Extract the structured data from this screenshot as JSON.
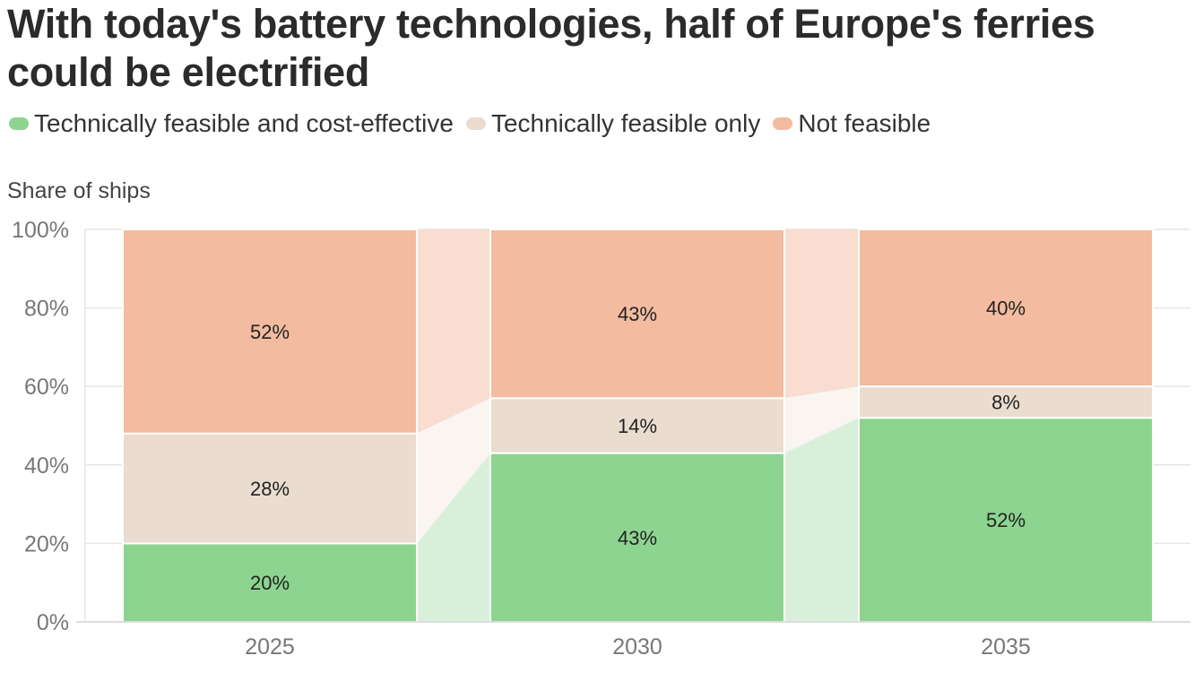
{
  "title": "With today's battery technologies, half of Europe's ferries could be electrified",
  "legend": [
    {
      "label": "Technically feasible and cost-effective",
      "color": "#8dd490"
    },
    {
      "label": "Technically feasible only",
      "color": "#eadccf"
    },
    {
      "label": "Not feasible",
      "color": "#f3bba0"
    }
  ],
  "chart_data": {
    "type": "bar",
    "stacked": true,
    "title": "With today's battery technologies, half of Europe's ferries could be electrified",
    "ylabel": "Share of ships",
    "xlabel": "",
    "ylim": [
      0,
      100
    ],
    "yticks": [
      "0%",
      "20%",
      "40%",
      "60%",
      "80%",
      "100%"
    ],
    "categories": [
      "2025",
      "2030",
      "2035"
    ],
    "series": [
      {
        "name": "Technically feasible and cost-effective",
        "values": [
          20,
          43,
          52
        ],
        "labels": [
          "20%",
          "43%",
          "52%"
        ],
        "color": "#8dd490",
        "band_color": "#d8f0d9"
      },
      {
        "name": "Technically feasible only",
        "values": [
          28,
          14,
          8
        ],
        "labels": [
          "28%",
          "14%",
          "8%"
        ],
        "color": "#eadccf",
        "band_color": "#faf5f1"
      },
      {
        "name": "Not feasible",
        "values": [
          52,
          43,
          40
        ],
        "labels": [
          "52%",
          "43%",
          "40%"
        ],
        "color": "#f3bba0",
        "band_color": "#f8ddd0"
      }
    ]
  }
}
